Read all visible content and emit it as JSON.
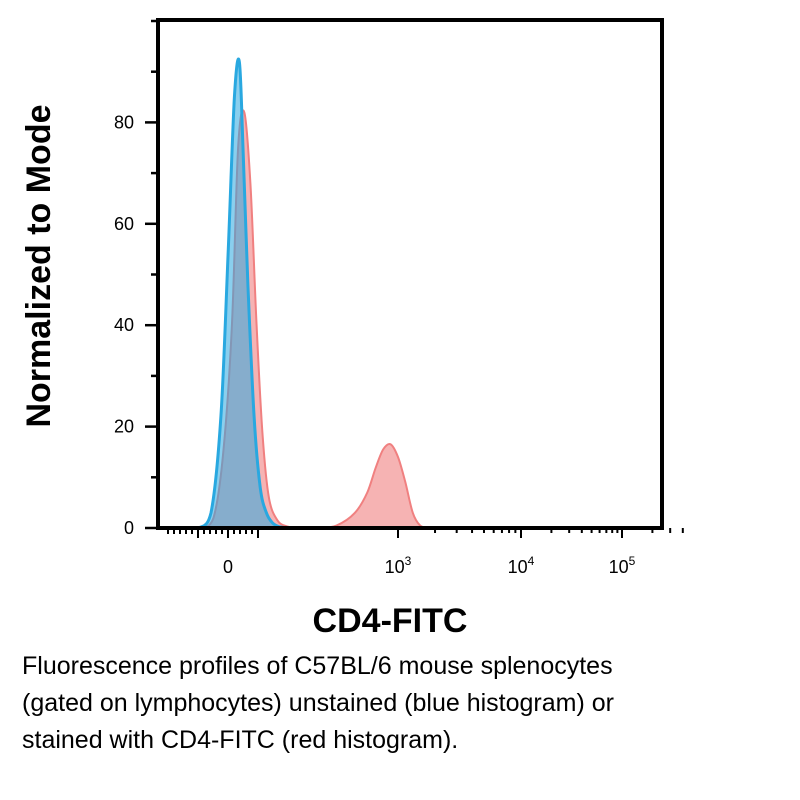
{
  "chart_data": {
    "type": "area",
    "xlabel": "CD4-FITC",
    "ylabel": "Normalized to Mode",
    "x_scale": "biexponential",
    "x_ticks": [
      "0",
      "10^3",
      "10^4",
      "10^5"
    ],
    "y_ticks": [
      0,
      20,
      40,
      60,
      80
    ],
    "ylim": [
      0,
      100
    ],
    "grid": false,
    "colors": {
      "unstained": "#29a8e0",
      "stained": "#f08080"
    },
    "series": [
      {
        "key": "stained",
        "description": "CD4-FITC stained (red histogram)",
        "x_relative_to_1e3_tick": [
          -1.72,
          -1.6,
          -1.5,
          -1.42,
          -1.35,
          -1.3,
          -1.25,
          -1.2,
          -1.15,
          -1.1,
          -1.05,
          -0.98,
          -0.9,
          -0.8,
          -0.65,
          -0.5,
          -0.35,
          -0.25,
          -0.18,
          -0.12,
          -0.06,
          0.0,
          0.06,
          0.12,
          0.18,
          0.25
        ],
        "values": [
          0,
          0,
          2,
          15,
          40,
          75,
          82,
          68,
          40,
          18,
          6,
          1.5,
          0.3,
          0,
          0,
          0.5,
          3,
          7,
          12,
          15.5,
          16.5,
          14,
          9,
          3,
          0.5,
          0
        ]
      },
      {
        "key": "unstained",
        "description": "unstained (blue histogram)",
        "x_relative_to_1e3_tick": [
          -1.72,
          -1.62,
          -1.52,
          -1.44,
          -1.38,
          -1.33,
          -1.29,
          -1.26,
          -1.22,
          -1.17,
          -1.12,
          -1.07,
          -1.02,
          -0.97,
          -0.9
        ],
        "values": [
          0,
          0,
          3,
          22,
          55,
          85,
          92,
          75,
          48,
          22,
          8,
          3,
          1,
          0.3,
          0
        ]
      }
    ]
  },
  "caption": [
    "Fluorescence profiles of C57BL/6 mouse splenocytes",
    "(gated on lymphocytes) unstained (blue histogram) or",
    "stained with CD4-FITC (red histogram)."
  ]
}
